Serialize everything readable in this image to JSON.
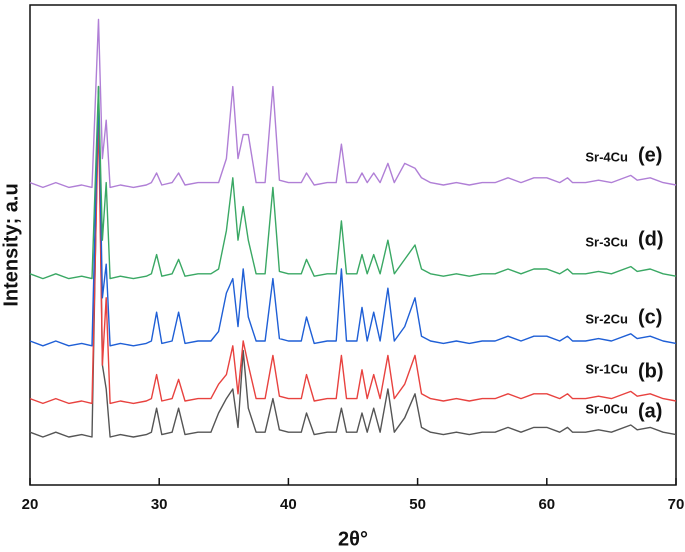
{
  "chart_data": {
    "type": "line",
    "xlabel": "2θ°",
    "ylabel": "Intensity; a.u",
    "xlim": [
      20,
      70
    ],
    "xticks": [
      20,
      30,
      40,
      50,
      60,
      70
    ],
    "ylim": [
      0,
      100
    ],
    "x": [
      20,
      21,
      22,
      23,
      24,
      24.8,
      25.3,
      25.6,
      25.9,
      26.2,
      27,
      28,
      29,
      29.4,
      29.8,
      30.2,
      31,
      31.5,
      32,
      33,
      34,
      34.6,
      35.2,
      35.7,
      36.1,
      36.5,
      36.9,
      37.5,
      38.2,
      38.8,
      39.3,
      40,
      41,
      41.4,
      42,
      43,
      43.7,
      44.1,
      44.5,
      45.3,
      45.7,
      46.1,
      46.6,
      47.1,
      47.7,
      48.2,
      49,
      49.8,
      50.3,
      51,
      52,
      53,
      54,
      55,
      56,
      57,
      58,
      59,
      60,
      61,
      61.6,
      62,
      63,
      64,
      65,
      66.5,
      67,
      68,
      69,
      70
    ],
    "series": [
      {
        "name": "Sr-0Cu",
        "label": "(a)",
        "color": "#555555",
        "label_color": "#333333",
        "values": [
          11,
          10,
          11,
          10,
          10.5,
          10,
          83,
          25,
          20,
          10,
          10.5,
          10,
          10.5,
          11,
          16,
          10.5,
          11,
          16,
          10.5,
          11,
          11,
          15,
          18,
          20,
          12,
          28,
          16,
          11,
          11,
          18,
          11.5,
          11,
          11,
          15,
          10.5,
          11,
          11,
          16,
          11,
          11,
          15,
          11,
          16,
          11,
          20,
          11,
          14,
          19,
          12,
          11,
          10.5,
          11,
          10.5,
          11,
          11,
          12,
          11,
          12,
          12,
          11,
          12,
          11,
          11,
          11.5,
          11,
          12.5,
          11.5,
          12,
          11,
          10.5
        ]
      },
      {
        "name": "Sr-1Cu",
        "label": "(b)",
        "color": "#e8423f",
        "label_color": "#e8302c",
        "values": [
          18,
          17,
          18,
          17,
          17.5,
          17,
          77,
          25,
          39,
          17,
          17.5,
          17,
          17.5,
          18,
          23,
          17.5,
          18,
          22,
          17.5,
          18,
          18,
          21,
          23,
          29,
          19,
          30,
          25,
          18,
          18,
          27,
          18.5,
          18,
          18,
          23,
          17.5,
          18,
          18,
          27,
          18,
          18,
          24,
          18,
          23,
          18,
          27,
          18,
          21,
          27,
          19,
          18,
          17.5,
          18,
          17.5,
          18,
          18,
          19,
          18,
          19,
          19,
          18,
          19,
          18,
          18,
          18.5,
          18,
          19.5,
          18.5,
          19,
          18,
          17.5
        ]
      },
      {
        "name": "Sr-2Cu",
        "label": "(c)",
        "color": "#1f5fd6",
        "label_color": "#1f3fe0",
        "values": [
          30,
          29,
          30,
          29,
          29.5,
          29,
          82,
          39,
          46,
          29,
          29.5,
          29,
          29.5,
          30,
          36,
          29.5,
          30,
          36,
          29.5,
          30,
          30,
          32,
          40,
          43,
          33,
          45,
          35,
          30,
          30,
          43,
          30.5,
          30,
          30,
          35,
          29.5,
          30,
          30,
          45,
          30,
          30,
          37,
          30,
          36,
          30,
          41,
          30,
          33,
          39,
          31,
          30,
          29.5,
          30,
          29.5,
          30,
          30,
          31,
          30,
          31,
          31,
          30,
          31,
          30,
          30,
          30.5,
          30,
          31.5,
          30.5,
          31,
          30,
          29.5
        ]
      },
      {
        "name": "Sr-3Cu",
        "label": "(d)",
        "color": "#3aa864",
        "label_color": "#6a9a1f",
        "values": [
          44,
          43,
          44,
          43,
          43.5,
          43,
          83,
          51,
          63,
          43,
          43.5,
          43,
          43.5,
          44,
          48,
          43.5,
          44,
          47,
          43.5,
          44,
          44,
          45,
          53,
          64,
          51,
          58,
          51,
          44,
          44,
          62,
          44.5,
          44,
          44,
          47,
          43.5,
          44,
          44,
          55,
          44,
          44,
          48,
          44,
          48,
          44,
          51,
          44,
          47,
          50,
          45,
          44,
          43.5,
          44,
          43.5,
          44,
          44,
          45,
          44,
          45,
          45,
          44,
          45,
          44,
          44,
          44.5,
          44,
          45.5,
          44.5,
          45,
          44,
          43.5
        ]
      },
      {
        "name": "Sr-4Cu",
        "label": "(e)",
        "color": "#b07fd6",
        "label_color": "#c04fd8",
        "values": [
          63,
          62,
          63,
          62,
          62.5,
          62,
          97,
          68,
          76,
          62,
          62.5,
          62,
          62.5,
          63,
          65,
          62.5,
          63,
          65,
          62.5,
          63,
          63,
          63,
          68,
          83,
          68,
          73,
          73,
          63,
          63,
          83,
          63.5,
          63,
          63,
          65,
          62.5,
          63,
          63,
          71,
          63,
          63,
          65,
          63,
          65,
          63,
          67,
          63,
          67,
          66,
          64,
          63,
          62.5,
          63,
          62.5,
          63,
          63,
          64,
          63,
          64,
          64,
          63,
          64,
          63,
          63,
          63.5,
          63,
          64.5,
          63.5,
          64,
          63,
          62.5
        ]
      }
    ]
  }
}
